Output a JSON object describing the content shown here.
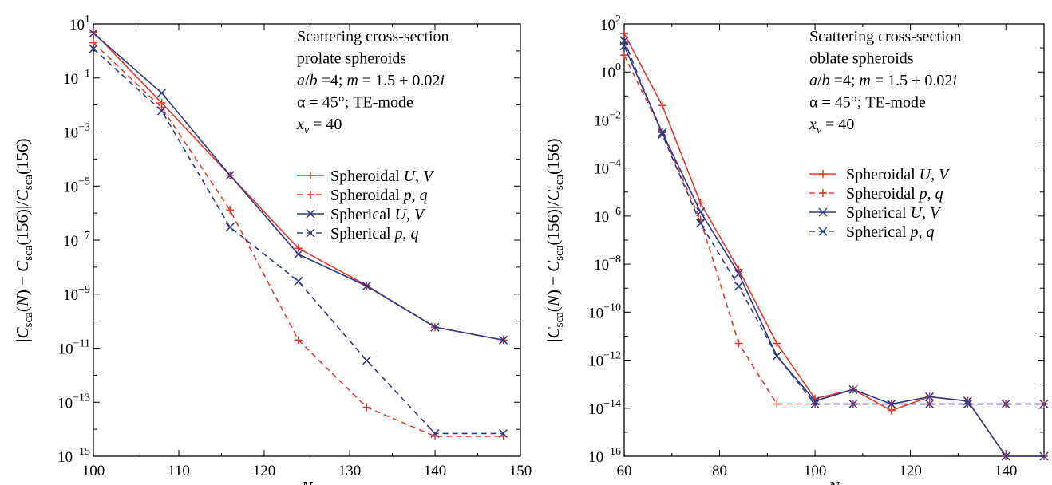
{
  "chart_data": [
    {
      "type": "line",
      "xlabel": "N",
      "ylabel": "|Csca(N) − Csca(156)|/Csca(156)",
      "xlim": [
        100,
        150
      ],
      "ylim_log10": [
        -15,
        1
      ],
      "y_scale": "log",
      "x_ticks": [
        100,
        110,
        120,
        130,
        140,
        150
      ],
      "y_tick_exponents": [
        1,
        -1,
        -3,
        -5,
        -7,
        -9,
        -11,
        -13,
        -15
      ],
      "annotation": [
        "Scattering cross-section",
        "prolate spheroids",
        "a/b =4; m = 1.5 + 0.02i",
        "α = 45°; TE-mode",
        "xv = 40"
      ],
      "legend_placement": "right",
      "series": [
        {
          "name": "Spheroidal U, V",
          "color": "#e8392a",
          "dash": "solid",
          "marker": "plus",
          "x": [
            100,
            108,
            116,
            124,
            132,
            140,
            148
          ],
          "y": [
            5,
            0.012,
            2.5e-05,
            5e-08,
            2.1e-09,
            6e-11,
            2e-11
          ]
        },
        {
          "name": "Spheroidal p, q",
          "color": "#e8392a",
          "dash": "dashed",
          "marker": "plus",
          "x": [
            100,
            108,
            116,
            124,
            132,
            140,
            148
          ],
          "y": [
            2,
            0.008,
            1.3e-06,
            2e-11,
            6.5e-14,
            5.5e-15,
            5.5e-15
          ]
        },
        {
          "name": "Spherical U, V",
          "color": "#2e3b8c",
          "dash": "solid",
          "marker": "x",
          "x": [
            100,
            108,
            116,
            124,
            132,
            140,
            148
          ],
          "y": [
            4.5,
            0.028,
            2.5e-05,
            3e-08,
            2e-09,
            6e-11,
            2e-11
          ]
        },
        {
          "name": "Spherical p, q",
          "color": "#2e3b8c",
          "dash": "dashed",
          "marker": "x",
          "x": [
            100,
            108,
            116,
            124,
            132,
            140,
            148
          ],
          "y": [
            1.2,
            0.006,
            3e-07,
            3e-09,
            3.5e-12,
            7e-15,
            7e-15
          ]
        }
      ]
    },
    {
      "type": "line",
      "xlabel": "N",
      "ylabel": "|Csca(N) − Csca(156)|/Csca(156)",
      "xlim": [
        60,
        148
      ],
      "ylim_log10": [
        -16,
        2
      ],
      "y_scale": "log",
      "x_ticks": [
        60,
        80,
        100,
        120,
        140
      ],
      "y_tick_exponents": [
        2,
        0,
        -2,
        -4,
        -6,
        -8,
        -10,
        -12,
        -14,
        -16
      ],
      "annotation": [
        "Scattering cross-section",
        "oblate spheroids",
        "a/b =4; m = 1.5 + 0.02i",
        "α = 45°; TE-mode",
        "xv = 40"
      ],
      "legend_placement": "right",
      "series": [
        {
          "name": "Spheroidal U, V",
          "color": "#e8392a",
          "dash": "solid",
          "marker": "plus",
          "x": [
            60,
            68,
            76,
            84,
            92,
            100,
            108,
            116,
            124,
            132,
            140,
            148
          ],
          "y": [
            40,
            0.04,
            3.5e-06,
            6e-09,
            5e-12,
            2.5e-14,
            6e-14,
            8e-15,
            3e-14,
            2e-14,
            1e-16,
            1e-16
          ]
        },
        {
          "name": "Spheroidal p, q",
          "color": "#e8392a",
          "dash": "dashed",
          "marker": "plus",
          "x": [
            60,
            68,
            76,
            84,
            92,
            100,
            108,
            116,
            124,
            132,
            140,
            148
          ],
          "y": [
            5,
            0.003,
            7e-07,
            5e-12,
            1.5e-14,
            1.5e-14,
            1.5e-14,
            1.5e-14,
            1.5e-14,
            1.5e-14,
            1.5e-14,
            1.5e-14
          ]
        },
        {
          "name": "Spherical U, V",
          "color": "#2e3b8c",
          "dash": "solid",
          "marker": "x",
          "x": [
            60,
            68,
            76,
            84,
            92,
            100,
            108,
            116,
            124,
            132,
            140,
            148
          ],
          "y": [
            12,
            0.003,
            1.5e-06,
            4e-09,
            1.5e-12,
            2e-14,
            6e-14,
            1.5e-14,
            3e-14,
            2e-14,
            1e-16,
            1e-16
          ]
        },
        {
          "name": "Spherical p, q",
          "color": "#2e3b8c",
          "dash": "dashed",
          "marker": "x",
          "x": [
            60,
            68,
            76,
            84,
            92,
            100,
            108,
            116,
            124,
            132,
            140,
            148
          ],
          "y": [
            20,
            0.0025,
            5e-07,
            1.2e-09,
            1.5e-12,
            1.5e-14,
            1.5e-14,
            1.5e-14,
            1.5e-14,
            1.5e-14,
            1.5e-14,
            1.5e-14
          ]
        }
      ]
    }
  ]
}
